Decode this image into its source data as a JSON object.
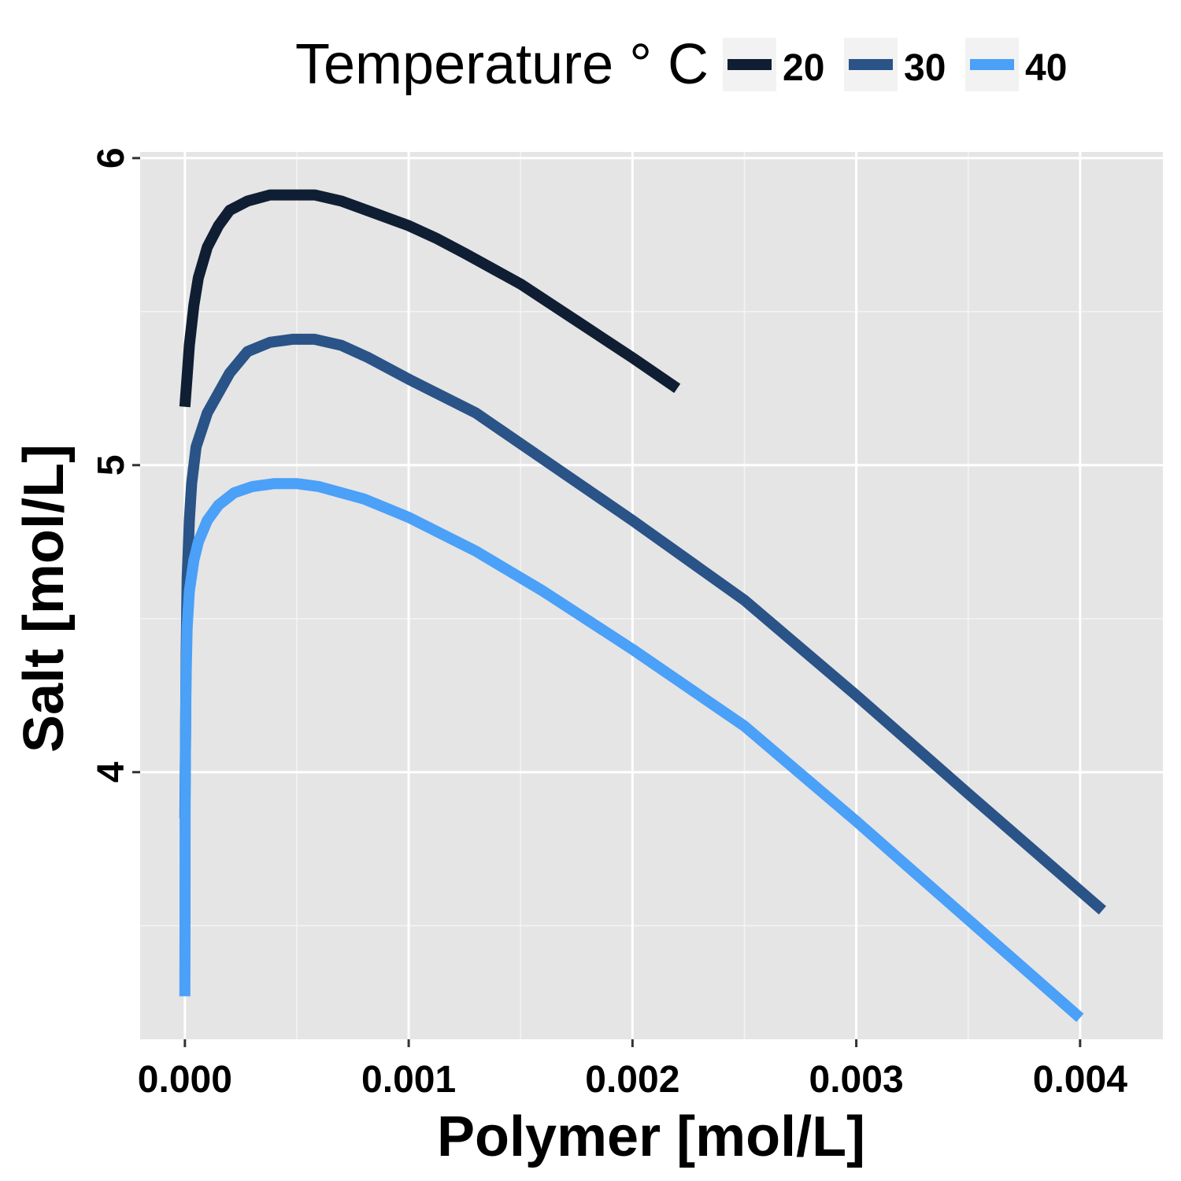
{
  "chart_data": {
    "type": "line",
    "xlabel": "Polymer [mol/L]",
    "ylabel": "Salt [mol/L]",
    "xlim": [
      -0.0002,
      0.00437
    ],
    "ylim": [
      3.13,
      6.02
    ],
    "x_ticks": [
      0.0,
      0.001,
      0.002,
      0.003,
      0.004
    ],
    "x_tick_labels": [
      "0.000",
      "0.001",
      "0.002",
      "0.003",
      "0.004"
    ],
    "y_ticks": [
      4,
      5,
      6
    ],
    "y_tick_labels": [
      "4",
      "5",
      "6"
    ],
    "grid": true,
    "legend": {
      "title": "Temperature ° C",
      "position": "top"
    },
    "series": [
      {
        "name": "20",
        "color": "#0f1e33",
        "x": [
          0.0,
          1e-05,
          2e-05,
          4e-05,
          6e-05,
          0.0001,
          0.00015,
          0.0002,
          0.00028,
          0.00038,
          0.00048,
          0.00058,
          0.0007,
          0.00085,
          0.001,
          0.00112,
          0.00125,
          0.0015,
          0.00175,
          0.002,
          0.0022
        ],
        "y": [
          5.19,
          5.29,
          5.39,
          5.52,
          5.61,
          5.71,
          5.78,
          5.83,
          5.86,
          5.88,
          5.88,
          5.88,
          5.86,
          5.82,
          5.78,
          5.74,
          5.69,
          5.59,
          5.47,
          5.35,
          5.25
        ]
      },
      {
        "name": "30",
        "color": "#2a5387",
        "x": [
          0.0,
          2.5e-06,
          5e-06,
          1e-05,
          2e-05,
          3e-05,
          5e-05,
          0.0001,
          0.0002,
          0.00028,
          0.00038,
          0.00048,
          0.00058,
          0.0007,
          0.00082,
          0.001,
          0.0013,
          0.0016,
          0.002,
          0.0025,
          0.003,
          0.0035,
          0.0041
        ],
        "y": [
          3.85,
          4.1,
          4.35,
          4.63,
          4.82,
          4.94,
          5.06,
          5.17,
          5.3,
          5.37,
          5.4,
          5.41,
          5.41,
          5.39,
          5.35,
          5.28,
          5.17,
          5.02,
          4.82,
          4.56,
          4.25,
          3.93,
          3.55
        ]
      },
      {
        "name": "40",
        "color": "#4ba0f8",
        "x": [
          0.0,
          5e-07,
          1e-06,
          2.5e-06,
          5e-06,
          1e-05,
          2e-05,
          4e-05,
          6e-05,
          0.0001,
          0.00015,
          0.00022,
          0.0003,
          0.0004,
          0.0005,
          0.0006,
          0.0008,
          0.001,
          0.0013,
          0.0016,
          0.002,
          0.0025,
          0.003,
          0.0035,
          0.004
        ],
        "y": [
          3.27,
          3.5,
          3.85,
          4.1,
          4.3,
          4.47,
          4.59,
          4.69,
          4.75,
          4.82,
          4.87,
          4.91,
          4.93,
          4.94,
          4.94,
          4.93,
          4.89,
          4.83,
          4.72,
          4.59,
          4.4,
          4.15,
          3.84,
          3.52,
          3.2
        ]
      }
    ]
  }
}
